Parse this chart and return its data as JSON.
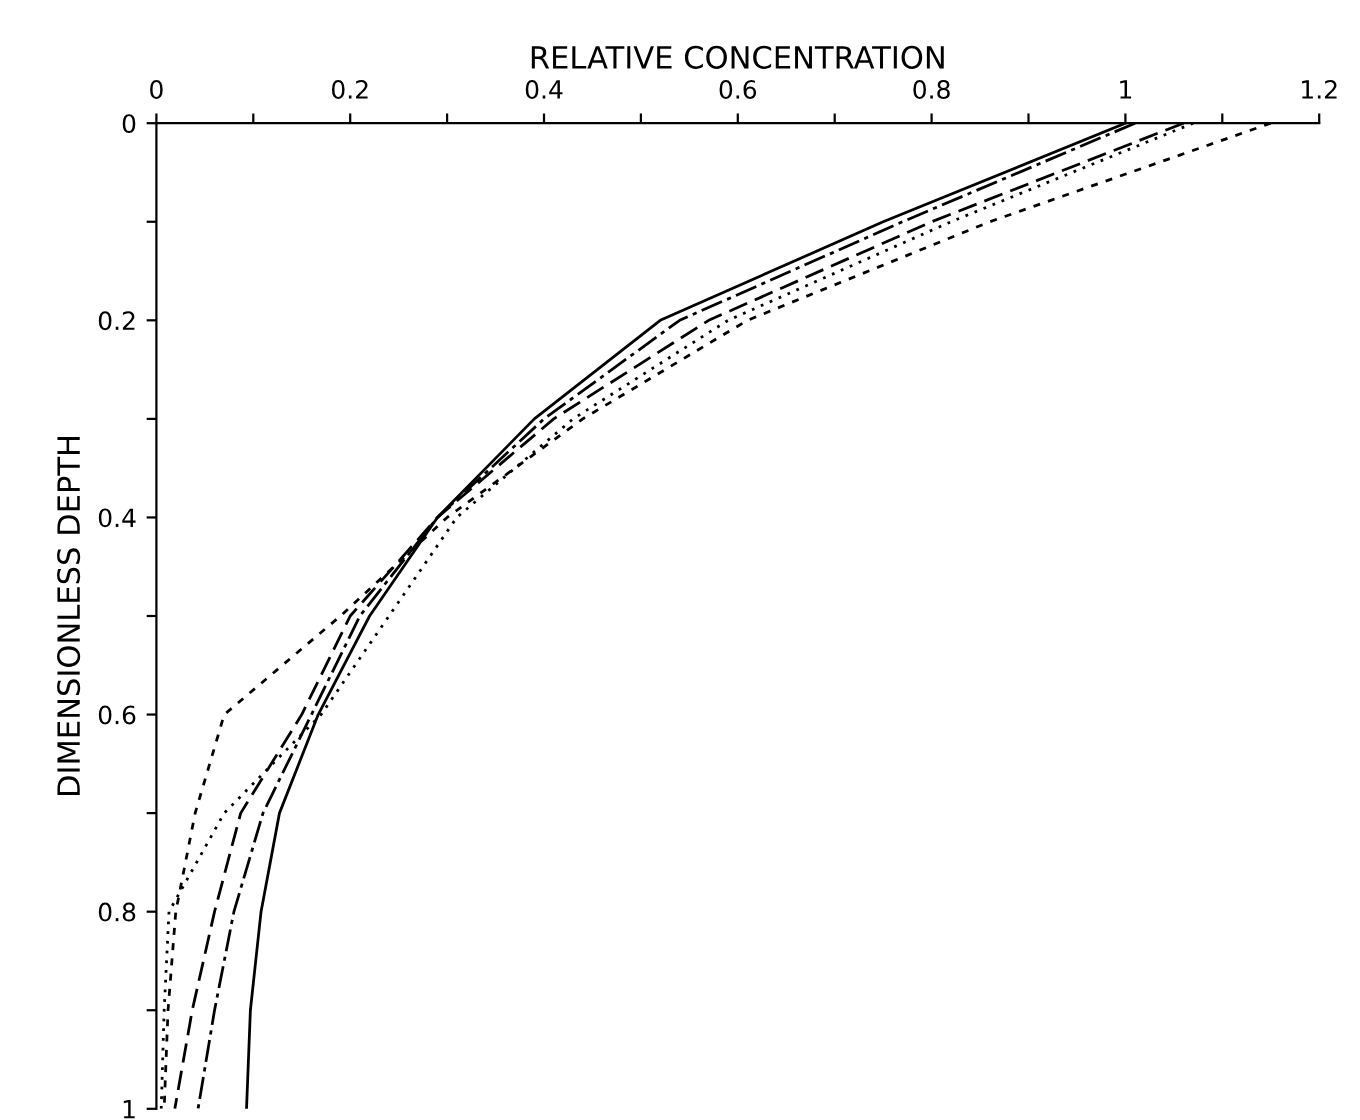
{
  "chart_data": {
    "type": "line",
    "xlabel": "RELATIVE CONCENTRATION",
    "ylabel": "DIMENSIONLESS DEPTH",
    "xlim": [
      0,
      1.2
    ],
    "ylim": [
      1,
      0
    ],
    "xticks": [
      0,
      {
        "value": 0.1,
        "label": null
      },
      0.2,
      {
        "value": 0.3,
        "label": null
      },
      0.4,
      {
        "value": 0.5,
        "label": null
      },
      0.6,
      {
        "value": 0.7,
        "label": null
      },
      0.8,
      {
        "value": 0.9,
        "label": null
      },
      1,
      {
        "value": 1.1,
        "label": null
      },
      1.2
    ],
    "yticks": [
      0,
      {
        "value": 0.1,
        "label": null
      },
      0.2,
      {
        "value": 0.3,
        "label": null
      },
      0.4,
      {
        "value": 0.5,
        "label": null
      },
      0.6,
      {
        "value": 0.7,
        "label": null
      },
      0.8,
      {
        "value": 0.9,
        "label": null
      },
      1
    ],
    "grid": false,
    "legend": false,
    "marker": "none",
    "series": [
      {
        "color": "#000000",
        "line_style": "solid",
        "x": [
          1.0,
          0.75,
          0.52,
          0.39,
          0.29,
          0.22,
          0.167,
          0.127,
          0.108,
          0.097,
          0.093
        ],
        "values": [
          0,
          0.1,
          0.2,
          0.3,
          0.4,
          0.5,
          0.6,
          0.7,
          0.8,
          0.9,
          1
        ]
      },
      {
        "color": "#000000",
        "line_style": "dashdot",
        "x": [
          1.01,
          0.77,
          0.54,
          0.4,
          0.29,
          0.21,
          0.16,
          0.11,
          0.08,
          0.06,
          0.043
        ],
        "values": [
          0,
          0.1,
          0.2,
          0.3,
          0.4,
          0.5,
          0.6,
          0.7,
          0.8,
          0.9,
          1
        ]
      },
      {
        "color": "#000000",
        "line_style": "dashed",
        "x": [
          1.06,
          0.8,
          0.57,
          0.41,
          0.29,
          0.2,
          0.15,
          0.087,
          0.06,
          0.037,
          0.019
        ],
        "values": [
          0,
          0.1,
          0.2,
          0.3,
          0.4,
          0.5,
          0.6,
          0.7,
          0.8,
          0.9,
          1
        ]
      },
      {
        "color": "#000000",
        "line_style": "dotted",
        "x": [
          1.07,
          0.82,
          0.59,
          0.43,
          0.31,
          0.24,
          0.17,
          0.07,
          0.013,
          0.008,
          0.005
        ],
        "values": [
          0,
          0.1,
          0.2,
          0.3,
          0.4,
          0.5,
          0.6,
          0.7,
          0.8,
          0.9,
          1
        ]
      },
      {
        "color": "#000000",
        "line_style": "shortdash",
        "x": [
          1.15,
          0.86,
          0.61,
          0.44,
          0.3,
          0.19,
          0.07,
          0.04,
          0.02,
          0.012,
          0.008
        ],
        "values": [
          0,
          0.1,
          0.2,
          0.3,
          0.4,
          0.5,
          0.6,
          0.7,
          0.8,
          0.9,
          1
        ]
      }
    ]
  }
}
